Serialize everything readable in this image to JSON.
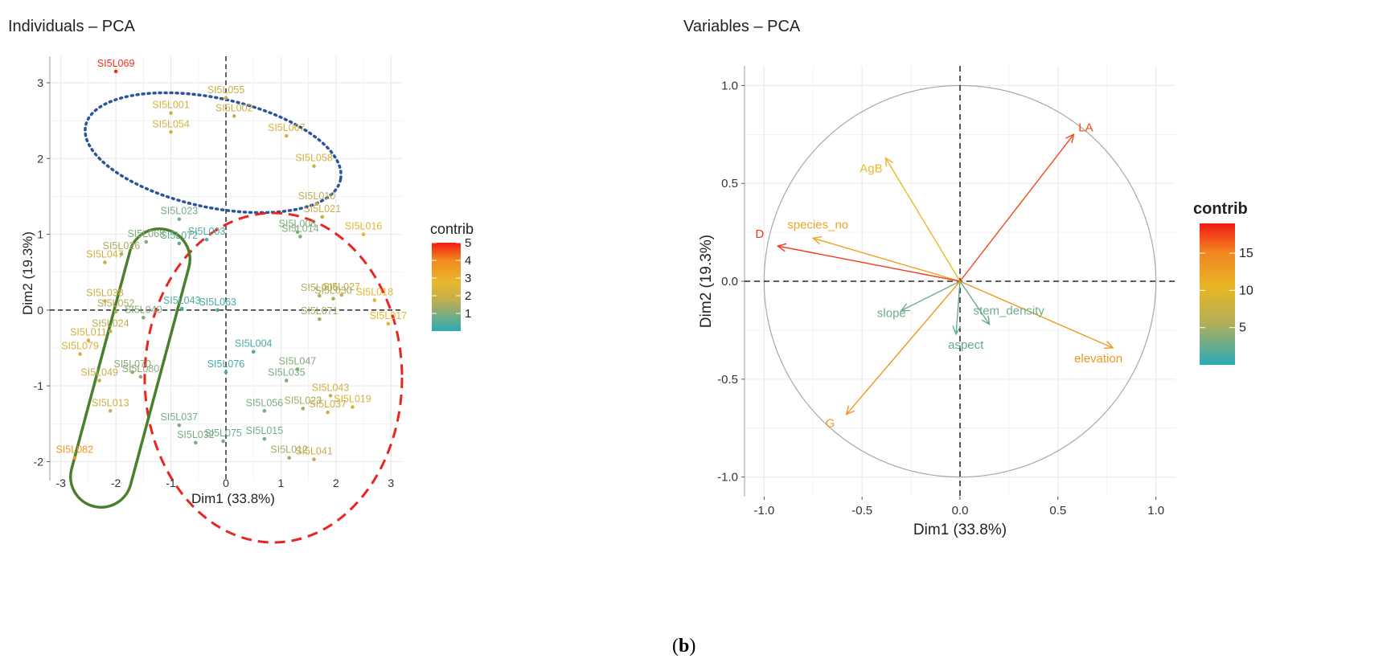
{
  "caption": {
    "open": "(",
    "letter": "b",
    "close": ")"
  },
  "colors": {
    "low": "#2aaab8",
    "mid": "#e3b22a",
    "high": "#f21a14",
    "panel": "#ffffff",
    "grid": "#ebebeb"
  },
  "chart_data": [
    {
      "type": "scatter",
      "title": "Individuals – PCA",
      "xlabel": "Dim1 (33.8%)",
      "ylabel": "Dim2 (19.3%)",
      "xlim": [
        -3.2,
        3.2
      ],
      "ylim": [
        -2.25,
        3.35
      ],
      "xticks": [
        -3,
        -2,
        -1,
        0,
        1,
        2,
        3
      ],
      "yticks": [
        -2,
        -1,
        0,
        1,
        2,
        3
      ],
      "grid": true,
      "legend": {
        "title": "contrib",
        "position": "right",
        "min": 0,
        "max": 5,
        "ticks": [
          1,
          2,
          3,
          4,
          5
        ]
      },
      "points": [
        {
          "label": "SI5L069",
          "x": -2.0,
          "y": 3.15,
          "contrib": 4.8
        },
        {
          "label": "SI5L055",
          "x": 0.0,
          "y": 2.8,
          "contrib": 2.0
        },
        {
          "label": "SI5L002",
          "x": 0.15,
          "y": 2.56,
          "contrib": 2.0
        },
        {
          "label": "SI5L001",
          "x": -1.0,
          "y": 2.6,
          "contrib": 2.1
        },
        {
          "label": "SI5L054",
          "x": -1.0,
          "y": 2.35,
          "contrib": 2.1
        },
        {
          "label": "SI5L067",
          "x": 1.1,
          "y": 2.3,
          "contrib": 2.3
        },
        {
          "label": "SI5L058",
          "x": 1.6,
          "y": 1.9,
          "contrib": 2.2
        },
        {
          "label": "SI5L010",
          "x": 1.65,
          "y": 1.4,
          "contrib": 1.7
        },
        {
          "label": "SI5L021",
          "x": 1.75,
          "y": 1.23,
          "contrib": 1.8
        },
        {
          "label": "SI5L016",
          "x": 2.5,
          "y": 1.0,
          "contrib": 2.6
        },
        {
          "label": "SI5L008",
          "x": 1.3,
          "y": 1.03,
          "contrib": 1.0
        },
        {
          "label": "SI5L014",
          "x": 1.35,
          "y": 0.97,
          "contrib": 1.0
        },
        {
          "label": "SI5L023",
          "x": -0.85,
          "y": 1.2,
          "contrib": 0.9
        },
        {
          "label": "SI5L003",
          "x": -0.35,
          "y": 0.93,
          "contrib": 0.4
        },
        {
          "label": "SI5L072",
          "x": -0.85,
          "y": 0.88,
          "contrib": 0.6
        },
        {
          "label": "SI5L068",
          "x": -1.45,
          "y": 0.9,
          "contrib": 1.0
        },
        {
          "label": "SI5L026",
          "x": -1.9,
          "y": 0.74,
          "contrib": 1.5
        },
        {
          "label": "SI5L047",
          "x": -2.2,
          "y": 0.63,
          "contrib": 2.0
        },
        {
          "label": "SI5L006",
          "x": 1.7,
          "y": 0.19,
          "contrib": 1.6
        },
        {
          "label": "SI5L027",
          "x": 2.1,
          "y": 0.2,
          "contrib": 1.9
        },
        {
          "label": "SI5L030",
          "x": 1.95,
          "y": 0.15,
          "contrib": 1.5
        },
        {
          "label": "SI5L018",
          "x": 2.7,
          "y": 0.13,
          "contrib": 2.6
        },
        {
          "label": "SI5L017",
          "x": 2.95,
          "y": -0.18,
          "contrib": 2.8
        },
        {
          "label": "SI5L071",
          "x": 1.7,
          "y": -0.12,
          "contrib": 1.3
        },
        {
          "label": "SI5L038",
          "x": -2.2,
          "y": 0.12,
          "contrib": 1.9
        },
        {
          "label": "SI5L052",
          "x": -2.0,
          "y": -0.02,
          "contrib": 1.6
        },
        {
          "label": "SI5L040",
          "x": -1.5,
          "y": -0.1,
          "contrib": 1.0
        },
        {
          "label": "SI5L024",
          "x": -2.1,
          "y": -0.28,
          "contrib": 1.7
        },
        {
          "label": "SI5L011",
          "x": -2.5,
          "y": -0.4,
          "contrib": 2.2
        },
        {
          "label": "SI5L079",
          "x": -2.65,
          "y": -0.58,
          "contrib": 2.3
        },
        {
          "label": "SI5L043",
          "x": -0.8,
          "y": 0.02,
          "contrib": 0.4
        },
        {
          "label": "SI5L063",
          "x": -0.15,
          "y": 0.0,
          "contrib": 0.3
        },
        {
          "label": "SI5L004",
          "x": 0.5,
          "y": -0.55,
          "contrib": 0.4
        },
        {
          "label": "SI5L076",
          "x": 0.0,
          "y": -0.82,
          "contrib": 0.3
        },
        {
          "label": "SI5L047",
          "x": 1.3,
          "y": -0.78,
          "contrib": 1.0
        },
        {
          "label": "SI5L035",
          "x": 1.1,
          "y": -0.93,
          "contrib": 0.9
        },
        {
          "label": "SI5L070",
          "x": -1.7,
          "y": -0.82,
          "contrib": 1.1
        },
        {
          "label": "SI5L080",
          "x": -1.55,
          "y": -0.88,
          "contrib": 1.1
        },
        {
          "label": "SI5L049",
          "x": -2.3,
          "y": -0.93,
          "contrib": 1.9
        },
        {
          "label": "SI5L043",
          "x": 1.9,
          "y": -1.13,
          "contrib": 2.0
        },
        {
          "label": "SI5L019",
          "x": 2.3,
          "y": -1.28,
          "contrib": 2.3
        },
        {
          "label": "SI5L023",
          "x": 1.4,
          "y": -1.3,
          "contrib": 1.4
        },
        {
          "label": "SI5L037",
          "x": 1.85,
          "y": -1.35,
          "contrib": 1.9
        },
        {
          "label": "SI5L056",
          "x": 0.7,
          "y": -1.33,
          "contrib": 0.9
        },
        {
          "label": "SI5L013",
          "x": -2.1,
          "y": -1.33,
          "contrib": 1.9
        },
        {
          "label": "SI5L037",
          "x": -0.85,
          "y": -1.52,
          "contrib": 0.9
        },
        {
          "label": "SI5L075",
          "x": -0.05,
          "y": -1.73,
          "contrib": 0.8
        },
        {
          "label": "SI5L015",
          "x": 0.7,
          "y": -1.7,
          "contrib": 0.9
        },
        {
          "label": "SI5L032",
          "x": -0.55,
          "y": -1.75,
          "contrib": 0.9
        },
        {
          "label": "SI5L012",
          "x": 1.15,
          "y": -1.95,
          "contrib": 1.3
        },
        {
          "label": "SI5L041",
          "x": 1.6,
          "y": -1.97,
          "contrib": 1.8
        },
        {
          "label": "SI5L082",
          "x": -2.75,
          "y": -1.95,
          "contrib": 3.7
        }
      ]
    },
    {
      "type": "biplot-variables",
      "title": "Variables – PCA",
      "xlabel": "Dim1 (33.8%)",
      "ylabel": "Dim2 (19.3%)",
      "xlim": [
        -1.1,
        1.1
      ],
      "ylim": [
        -1.1,
        1.1
      ],
      "xticks": [
        "-1.0",
        "-0.5",
        "0.0",
        "0.5",
        "1.0"
      ],
      "yticks": [
        "-1.0",
        "-0.5",
        "0.0",
        "0.5",
        "1.0"
      ],
      "grid": true,
      "legend": {
        "title": "contrib",
        "position": "right",
        "min": 0,
        "max": 19,
        "ticks": [
          5,
          10,
          15
        ]
      },
      "variables": [
        {
          "label": "LA",
          "x": 0.58,
          "y": 0.75,
          "contrib": 17.5
        },
        {
          "label": "AgB",
          "x": -0.38,
          "y": 0.63,
          "contrib": 10.5
        },
        {
          "label": "species_no",
          "x": -0.75,
          "y": 0.22,
          "contrib": 12.5
        },
        {
          "label": "D",
          "x": -0.93,
          "y": 0.18,
          "contrib": 18.0
        },
        {
          "label": "slope",
          "x": -0.3,
          "y": -0.15,
          "contrib": 3.0
        },
        {
          "label": "aspect",
          "x": -0.02,
          "y": -0.27,
          "contrib": 2.2
        },
        {
          "label": "stem_density",
          "x": 0.15,
          "y": -0.22,
          "contrib": 3.0
        },
        {
          "label": "elevation",
          "x": 0.78,
          "y": -0.34,
          "contrib": 14.0
        },
        {
          "label": "G",
          "x": -0.58,
          "y": -0.68,
          "contrib": 14.0
        }
      ]
    }
  ]
}
